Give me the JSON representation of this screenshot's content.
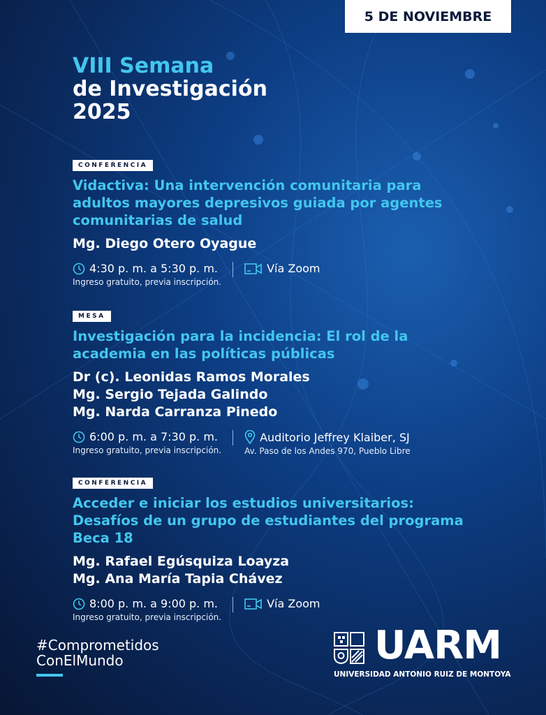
{
  "date": "5 DE NOVIEMBRE",
  "title": {
    "line1": "VIII Semana",
    "line2": "de Investigación",
    "line3": "2025"
  },
  "events": [
    {
      "tag": "CONFERENCIA",
      "title": "Vidactiva: Una intervención comunitaria para adultos mayores depresivos guiada por agentes comunitarias de salud",
      "speakers": [
        "Mg. Diego Otero Oyague"
      ],
      "time": "4:30 p. m. a 5:30 p. m.",
      "note": "Ingreso gratuito, previa inscripción.",
      "place": "Vía Zoom",
      "place_icon": "video-camera-icon"
    },
    {
      "tag": "MESA",
      "title": "Investigación para la incidencia: El rol de la academia en las políticas públicas",
      "speakers": [
        "Dr (c). Leonidas Ramos Morales",
        "Mg. Sergio Tejada Galindo",
        "Mg. Narda Carranza Pinedo"
      ],
      "time": "6:00 p. m. a 7:30 p. m.",
      "note": "Ingreso gratuito, previa inscripción.",
      "place": "Auditorio Jeffrey Klaiber, SJ",
      "address": "Av. Paso de los Andes 970, Pueblo Libre",
      "place_icon": "map-pin-icon"
    },
    {
      "tag": "CONFERENCIA",
      "title": "Acceder e iniciar los estudios universitarios: Desafíos de un grupo de estudiantes del programa Beca 18",
      "speakers": [
        "Mg. Rafael Egúsquiza Loayza",
        "Mg. Ana María Tapia Chávez"
      ],
      "time": "8:00 p. m. a 9:00 p. m.",
      "note": "Ingreso gratuito, previa inscripción.",
      "place": "Vía Zoom",
      "place_icon": "video-camera-icon"
    }
  ],
  "hashtag": {
    "line1": "#Comprometidos",
    "line2": "ConElMundo"
  },
  "logo": {
    "name": "UARM",
    "full": "UNIVERSIDAD ANTONIO RUIZ DE MONTOYA"
  },
  "colors": {
    "accent": "#43c6ee",
    "background": "#0a2a5e"
  }
}
